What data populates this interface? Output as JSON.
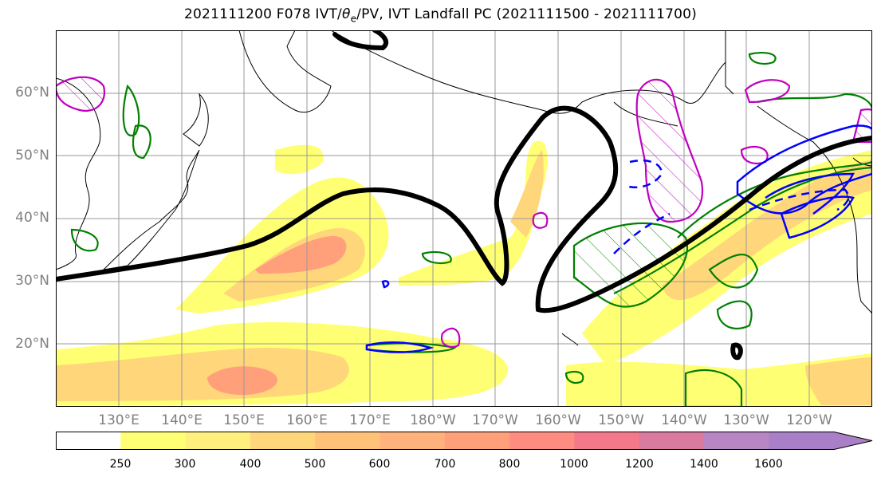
{
  "title": {
    "prefix": "2021111200 F078 IVT/",
    "theta": "θ",
    "sub": "e",
    "suffix": "/PV, IVT Landfall PC (2021111500 - 2021111700)"
  },
  "map": {
    "projection": "equirectangular",
    "lon_range_deg_east": [
      120,
      250
    ],
    "lat_range_deg_north": [
      10,
      70
    ],
    "fields": [
      "IVT (filled)",
      "theta-e",
      "PV"
    ]
  },
  "lat_labels": [
    "60°N",
    "50°N",
    "40°N",
    "30°N",
    "20°N"
  ],
  "lon_labels": [
    "130°E",
    "140°E",
    "150°E",
    "160°E",
    "170°E",
    "180°W",
    "170°W",
    "160°W",
    "150°W",
    "140°W",
    "130°W",
    "120°W"
  ],
  "colorbar": {
    "ticks": [
      "250",
      "300",
      "400",
      "500",
      "600",
      "700",
      "800",
      "1000",
      "1200",
      "1400",
      "1600"
    ],
    "colors": [
      "#ffffff",
      "#ffff73",
      "#fff07e",
      "#ffd77a",
      "#ffc278",
      "#ffb27c",
      "#ffa07a",
      "#ff8c80",
      "#f2788a",
      "#d97a9e",
      "#b886c4",
      "#a97fc7"
    ]
  },
  "colors": {
    "ivt_contour": "#000000",
    "theta_e_green": "#008000",
    "pv_magenta": "#c000c0",
    "pv_blue": "#0000ff",
    "coast": "#000000"
  }
}
